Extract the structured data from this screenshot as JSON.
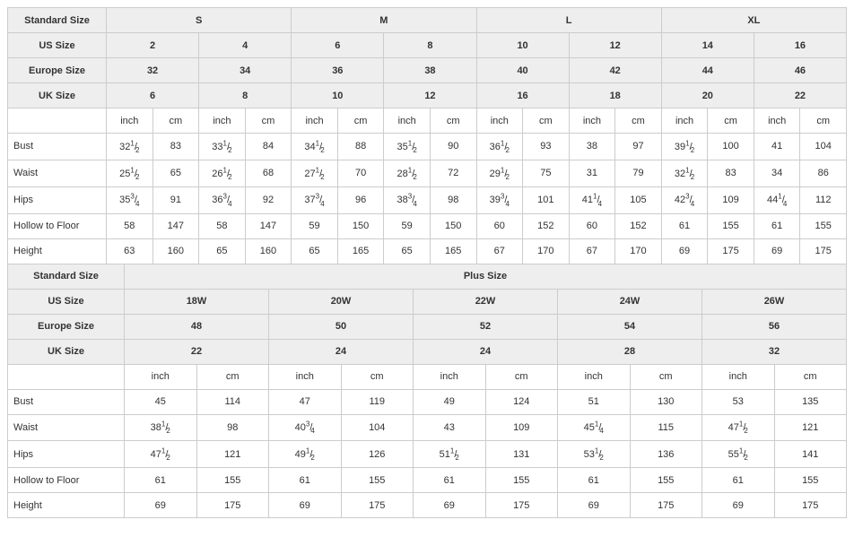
{
  "labels": {
    "standard_size": "Standard Size",
    "us_size": "US Size",
    "europe_size": "Europe Size",
    "uk_size": "UK Size",
    "inch": "inch",
    "cm": "cm",
    "plus_size": "Plus Size"
  },
  "standard": {
    "sizes": [
      "S",
      "M",
      "L",
      "XL"
    ],
    "us": [
      "2",
      "4",
      "6",
      "8",
      "10",
      "12",
      "14",
      "16"
    ],
    "europe": [
      "32",
      "34",
      "36",
      "38",
      "40",
      "42",
      "44",
      "46"
    ],
    "uk": [
      "6",
      "8",
      "10",
      "12",
      "16",
      "18",
      "20",
      "22"
    ],
    "rows": [
      {
        "label": "Bust",
        "vals": [
          [
            "32 1/2",
            "83"
          ],
          [
            "33 1/2",
            "84"
          ],
          [
            "34 1/2",
            "88"
          ],
          [
            "35 1/2",
            "90"
          ],
          [
            "36 1/2",
            "93"
          ],
          [
            "38",
            "97"
          ],
          [
            "39 1/2",
            "100"
          ],
          [
            "41",
            "104"
          ]
        ]
      },
      {
        "label": "Waist",
        "vals": [
          [
            "25 1/2",
            "65"
          ],
          [
            "26 1/2",
            "68"
          ],
          [
            "27 1/2",
            "70"
          ],
          [
            "28 1/2",
            "72"
          ],
          [
            "29 1/2",
            "75"
          ],
          [
            "31",
            "79"
          ],
          [
            "32 1/2",
            "83"
          ],
          [
            "34",
            "86"
          ]
        ]
      },
      {
        "label": "Hips",
        "vals": [
          [
            "35 3/4",
            "91"
          ],
          [
            "36 3/4",
            "92"
          ],
          [
            "37 3/4",
            "96"
          ],
          [
            "38 3/4",
            "98"
          ],
          [
            "39 3/4",
            "101"
          ],
          [
            "41 1/4",
            "105"
          ],
          [
            "42 3/4",
            "109"
          ],
          [
            "44 1/4",
            "112"
          ]
        ]
      },
      {
        "label": "Hollow to Floor",
        "vals": [
          [
            "58",
            "147"
          ],
          [
            "58",
            "147"
          ],
          [
            "59",
            "150"
          ],
          [
            "59",
            "150"
          ],
          [
            "60",
            "152"
          ],
          [
            "60",
            "152"
          ],
          [
            "61",
            "155"
          ],
          [
            "61",
            "155"
          ]
        ]
      },
      {
        "label": "Height",
        "vals": [
          [
            "63",
            "160"
          ],
          [
            "65",
            "160"
          ],
          [
            "65",
            "165"
          ],
          [
            "65",
            "165"
          ],
          [
            "67",
            "170"
          ],
          [
            "67",
            "170"
          ],
          [
            "69",
            "175"
          ],
          [
            "69",
            "175"
          ]
        ]
      }
    ]
  },
  "plus": {
    "us": [
      "18W",
      "20W",
      "22W",
      "24W",
      "26W"
    ],
    "europe": [
      "48",
      "50",
      "52",
      "54",
      "56"
    ],
    "uk": [
      "22",
      "24",
      "24",
      "28",
      "32"
    ],
    "rows": [
      {
        "label": "Bust",
        "vals": [
          [
            "45",
            "114"
          ],
          [
            "47",
            "119"
          ],
          [
            "49",
            "124"
          ],
          [
            "51",
            "130"
          ],
          [
            "53",
            "135"
          ]
        ]
      },
      {
        "label": "Waist",
        "vals": [
          [
            "38 1/2",
            "98"
          ],
          [
            "40 3/4",
            "104"
          ],
          [
            "43",
            "109"
          ],
          [
            "45 1/4",
            "115"
          ],
          [
            "47 1/2",
            "121"
          ]
        ]
      },
      {
        "label": "Hips",
        "vals": [
          [
            "47 1/2",
            "121"
          ],
          [
            "49 1/2",
            "126"
          ],
          [
            "51 1/2",
            "131"
          ],
          [
            "53 1/2",
            "136"
          ],
          [
            "55 1/2",
            "141"
          ]
        ]
      },
      {
        "label": "Hollow to Floor",
        "vals": [
          [
            "61",
            "155"
          ],
          [
            "61",
            "155"
          ],
          [
            "61",
            "155"
          ],
          [
            "61",
            "155"
          ],
          [
            "61",
            "155"
          ]
        ]
      },
      {
        "label": "Height",
        "vals": [
          [
            "69",
            "175"
          ],
          [
            "69",
            "175"
          ],
          [
            "69",
            "175"
          ],
          [
            "69",
            "175"
          ],
          [
            "69",
            "175"
          ]
        ]
      }
    ]
  }
}
